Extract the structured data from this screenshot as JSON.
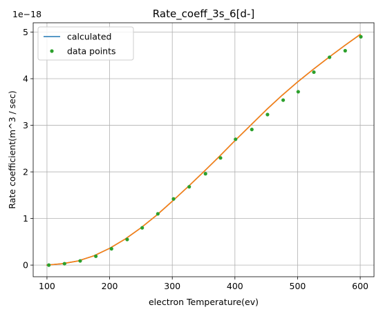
{
  "chart_data": {
    "type": "line",
    "title": "Rate_coeff_3s_6[d-]",
    "xlabel": "electron Temperature(ev)",
    "ylabel": "Rate coefficient(m^3 / sec)",
    "y_offset_label": "1e−18",
    "xlim": [
      78,
      622
    ],
    "ylim": [
      -0.25,
      5.2
    ],
    "x_ticks": [
      100,
      200,
      300,
      400,
      500,
      600
    ],
    "x_tick_labels": [
      "100",
      "200",
      "300",
      "400",
      "500",
      "600"
    ],
    "y_ticks": [
      0,
      1,
      2,
      3,
      4,
      5
    ],
    "y_tick_labels": [
      "0",
      "1",
      "2",
      "3",
      "4",
      "5"
    ],
    "grid": true,
    "legend_position": "top-left",
    "series": [
      {
        "name": "calculated",
        "kind": "line",
        "color": "#1f77b4",
        "x": [
          100,
          125,
          150,
          175,
          200,
          225,
          250,
          275,
          300,
          325,
          350,
          375,
          400,
          425,
          450,
          475,
          500,
          525,
          550,
          575,
          600
        ],
        "y": [
          0.0,
          0.03,
          0.09,
          0.2,
          0.36,
          0.56,
          0.8,
          1.07,
          1.37,
          1.68,
          2.0,
          2.33,
          2.67,
          3.0,
          3.33,
          3.64,
          3.93,
          4.2,
          4.46,
          4.71,
          4.95
        ]
      },
      {
        "name": "",
        "kind": "line",
        "color": "#ff7f0e",
        "x": [
          100,
          125,
          150,
          175,
          200,
          225,
          250,
          275,
          300,
          325,
          350,
          375,
          400,
          425,
          450,
          475,
          500,
          525,
          550,
          575,
          600
        ],
        "y": [
          0.0,
          0.03,
          0.09,
          0.2,
          0.36,
          0.56,
          0.8,
          1.07,
          1.37,
          1.68,
          2.0,
          2.33,
          2.67,
          3.0,
          3.33,
          3.64,
          3.93,
          4.2,
          4.46,
          4.71,
          4.95
        ]
      },
      {
        "name": "data points",
        "kind": "scatter",
        "color": "#2ca02c",
        "x": [
          103,
          128,
          153,
          178,
          203,
          228,
          252,
          277,
          302,
          327,
          353,
          377,
          401,
          427,
          452,
          477,
          501,
          526,
          551,
          576,
          601
        ],
        "y": [
          0.0,
          0.03,
          0.09,
          0.19,
          0.35,
          0.55,
          0.8,
          1.1,
          1.42,
          1.68,
          1.96,
          2.3,
          2.7,
          2.91,
          3.23,
          3.54,
          3.72,
          4.14,
          4.46,
          4.6,
          4.9
        ]
      }
    ],
    "legend": [
      {
        "label": "calculated",
        "color": "#1f77b4",
        "kind": "line"
      },
      {
        "label": "data points",
        "color": "#2ca02c",
        "kind": "marker"
      }
    ]
  }
}
